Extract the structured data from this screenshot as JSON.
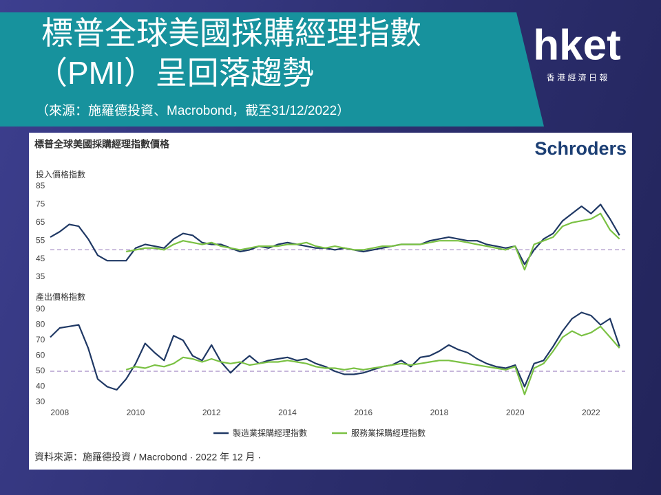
{
  "header": {
    "title_lines": [
      "標普全球美國採購經理指數",
      "（PMI）呈回落趨勢"
    ],
    "source": "（來源：施羅德投資、Macrobond，截至31/12/2022）"
  },
  "logo": {
    "name": "hket",
    "subtitle": "香 港 經 濟 日 報"
  },
  "panel": {
    "title": "標普全球美國採購經理指數價格",
    "brand": "Schroders",
    "note": "資料來源：施羅德投資 / Macrobond · 2022 年 12 月 ·"
  },
  "chart_data": [
    {
      "type": "line",
      "ylabel": "投入價格指數",
      "hline": 50,
      "x": [
        2007.75,
        2008,
        2008.25,
        2008.5,
        2008.75,
        2009,
        2009.25,
        2009.5,
        2009.75,
        2010,
        2010.25,
        2010.5,
        2010.75,
        2011,
        2011.25,
        2011.5,
        2011.75,
        2012,
        2012.25,
        2012.5,
        2012.75,
        2013,
        2013.25,
        2013.5,
        2013.75,
        2014,
        2014.25,
        2014.5,
        2014.75,
        2015,
        2015.25,
        2015.5,
        2015.75,
        2016,
        2016.25,
        2016.5,
        2016.75,
        2017,
        2017.25,
        2017.5,
        2017.75,
        2018,
        2018.25,
        2018.5,
        2018.75,
        2019,
        2019.25,
        2019.5,
        2019.75,
        2020,
        2020.25,
        2020.5,
        2020.75,
        2021,
        2021.25,
        2021.5,
        2021.75,
        2022,
        2022.25,
        2022.5,
        2022.75
      ],
      "xlim": [
        2007.75,
        2022.9
      ],
      "ylim": [
        35,
        85
      ],
      "yticks": [
        35,
        45,
        55,
        65,
        75,
        85
      ],
      "series": [
        {
          "color": "#1f3864",
          "values": [
            57,
            60,
            64,
            63,
            56,
            47,
            44,
            44,
            44,
            51,
            53,
            52,
            51,
            56,
            59,
            58,
            54,
            53,
            53,
            51,
            49,
            50,
            52,
            51,
            53,
            54,
            53,
            52,
            51,
            51,
            50,
            51,
            50,
            49,
            50,
            51,
            52,
            53,
            53,
            53,
            55,
            56,
            57,
            56,
            55,
            55,
            53,
            52,
            51,
            52,
            42,
            50,
            56,
            59,
            66,
            70,
            74,
            70,
            75,
            67,
            58
          ]
        },
        {
          "color": "#7ac143",
          "values": [
            null,
            null,
            null,
            null,
            null,
            null,
            null,
            null,
            49,
            50,
            51,
            51,
            50,
            53,
            55,
            54,
            53,
            54,
            52,
            51,
            50,
            51,
            52,
            52,
            52,
            53,
            53,
            54,
            52,
            51,
            52,
            51,
            50,
            50,
            51,
            52,
            52,
            53,
            53,
            53,
            54,
            55,
            55,
            55,
            54,
            53,
            52,
            51,
            50,
            52,
            39,
            53,
            55,
            57,
            63,
            65,
            66,
            67,
            70,
            61,
            56
          ]
        }
      ]
    },
    {
      "type": "line",
      "ylabel": "產出價格指數",
      "hline": 50,
      "x": [
        2007.75,
        2008,
        2008.25,
        2008.5,
        2008.75,
        2009,
        2009.25,
        2009.5,
        2009.75,
        2010,
        2010.25,
        2010.5,
        2010.75,
        2011,
        2011.25,
        2011.5,
        2011.75,
        2012,
        2012.25,
        2012.5,
        2012.75,
        2013,
        2013.25,
        2013.5,
        2013.75,
        2014,
        2014.25,
        2014.5,
        2014.75,
        2015,
        2015.25,
        2015.5,
        2015.75,
        2016,
        2016.25,
        2016.5,
        2016.75,
        2017,
        2017.25,
        2017.5,
        2017.75,
        2018,
        2018.25,
        2018.5,
        2018.75,
        2019,
        2019.25,
        2019.5,
        2019.75,
        2020,
        2020.25,
        2020.5,
        2020.75,
        2021,
        2021.25,
        2021.5,
        2021.75,
        2022,
        2022.25,
        2022.5,
        2022.75
      ],
      "xlim": [
        2007.75,
        2022.9
      ],
      "xticks": [
        2008,
        2010,
        2012,
        2014,
        2016,
        2018,
        2020,
        2022
      ],
      "ylim": [
        30,
        90
      ],
      "yticks": [
        30,
        40,
        50,
        60,
        70,
        80,
        90
      ],
      "series": [
        {
          "name": "製造業採購經理指數",
          "color": "#1f3864",
          "values": [
            72,
            78,
            79,
            80,
            65,
            45,
            40,
            38,
            45,
            55,
            68,
            62,
            57,
            73,
            70,
            60,
            57,
            67,
            56,
            49,
            55,
            60,
            55,
            57,
            58,
            59,
            57,
            58,
            55,
            53,
            50,
            48,
            48,
            49,
            51,
            53,
            54,
            57,
            53,
            59,
            60,
            63,
            67,
            64,
            62,
            58,
            55,
            53,
            52,
            54,
            40,
            55,
            57,
            66,
            76,
            84,
            88,
            86,
            80,
            84,
            66
          ]
        },
        {
          "name": "服務業採購經理指數",
          "color": "#7ac143",
          "values": [
            null,
            null,
            null,
            null,
            null,
            null,
            null,
            null,
            51,
            53,
            52,
            54,
            53,
            55,
            59,
            58,
            56,
            58,
            56,
            55,
            56,
            54,
            55,
            56,
            56,
            57,
            56,
            55,
            53,
            52,
            52,
            51,
            52,
            51,
            52,
            53,
            54,
            55,
            54,
            55,
            56,
            57,
            57,
            56,
            55,
            54,
            53,
            52,
            51,
            53,
            35,
            52,
            55,
            63,
            72,
            76,
            73,
            75,
            79,
            72,
            65
          ]
        }
      ]
    }
  ]
}
